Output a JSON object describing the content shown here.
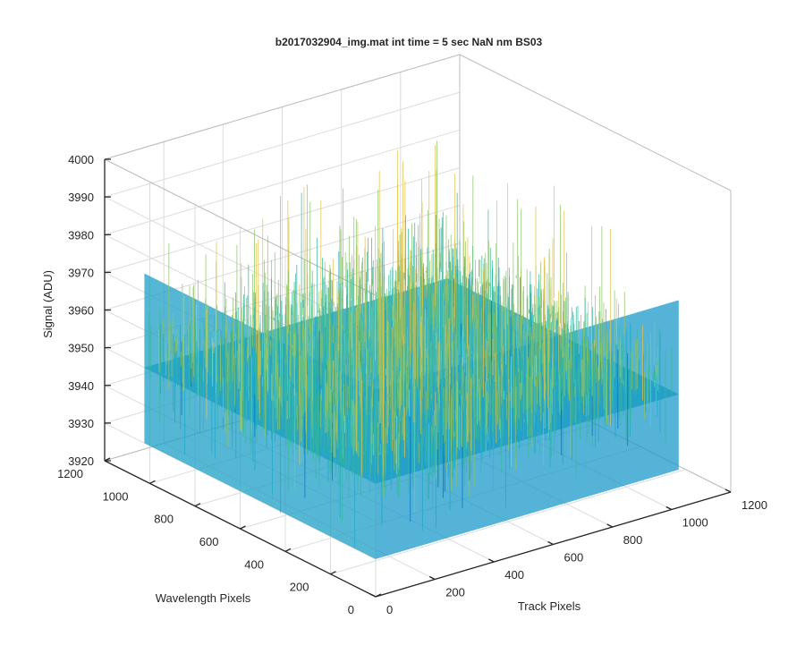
{
  "chart_data": {
    "type": "surface",
    "title": "b2017032904_img.mat int time = 5 sec  NaN nm BS03",
    "xlabel": "Track Pixels",
    "ylabel": "Wavelength Pixels",
    "zlabel": "Signal (ADU)",
    "xlim": [
      0,
      1200
    ],
    "ylim": [
      0,
      1200
    ],
    "zlim": [
      3920,
      4000
    ],
    "xticks": [
      "0",
      "200",
      "400",
      "600",
      "800",
      "1000",
      "1200"
    ],
    "yticks": [
      "0",
      "200",
      "400",
      "600",
      "800",
      "1000",
      "1200"
    ],
    "zticks": [
      "3920",
      "3930",
      "3940",
      "3950",
      "3960",
      "3970",
      "3980",
      "3990",
      "4000"
    ],
    "surface": {
      "x_range": [
        0,
        1024
      ],
      "y_range": [
        0,
        1024
      ],
      "mean_signal": 3950,
      "typical_range": [
        3930,
        3975
      ],
      "max_spike": 3995,
      "min_dip": 3927,
      "colormap": "parula",
      "colors": [
        "#0072bd",
        "#1ba9c7",
        "#37b8a0",
        "#8cc568",
        "#e3c34a"
      ]
    },
    "grid": true
  }
}
